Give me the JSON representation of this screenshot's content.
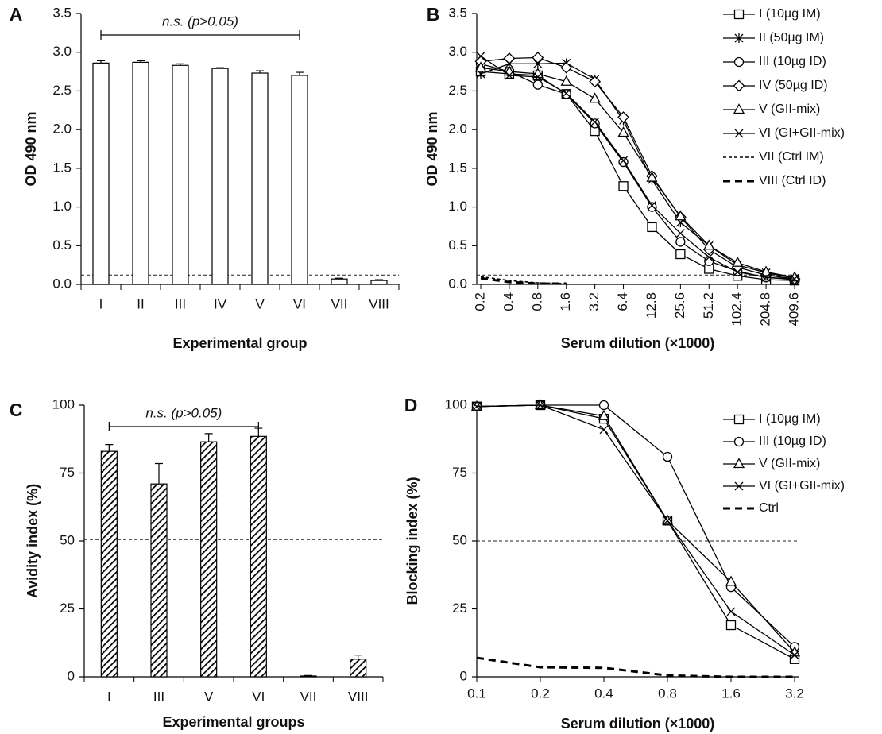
{
  "chart_data": [
    {
      "type": "bar",
      "panel": "A",
      "x_label": "Experimental group",
      "y_label": "OD 490 nm",
      "categories": [
        "I",
        "II",
        "III",
        "IV",
        "V",
        "VI",
        "VII",
        "VIII"
      ],
      "values": [
        2.86,
        2.87,
        2.83,
        2.79,
        2.73,
        2.7,
        0.07,
        0.05
      ],
      "errors": [
        0.03,
        0.02,
        0.02,
        0.01,
        0.03,
        0.04,
        0.01,
        0.01
      ],
      "color": "#ffffff",
      "edge_color": "#000000",
      "hatch": false,
      "reference_line": 0.12,
      "annotation": {
        "text": "n.s. (p>0.05)",
        "from": "I",
        "to": "VI"
      },
      "ylim": [
        0,
        3.5
      ],
      "yticks": [
        {
          "value": 0,
          "label": "0.0"
        },
        0.5,
        {
          "value": 1,
          "label": "1.0"
        },
        1.5,
        {
          "value": 2,
          "label": "2.0"
        },
        2.5,
        {
          "value": 3,
          "label": "3.0"
        },
        3.5
      ]
    },
    {
      "type": "line",
      "panel": "B",
      "x_label": "Serum dilution (×1000)",
      "y_label": "OD 490 nm",
      "categories": [
        "0.2",
        "0.4",
        "0.8",
        "1.6",
        "3.2",
        "6.4",
        "12.8",
        "25.6",
        "51.2",
        "102.4",
        "204.8",
        "409.6"
      ],
      "series": [
        {
          "name": "I (10µg IM)",
          "color": "#000000",
          "marker": "square",
          "line_style": "solid",
          "values": [
            2.75,
            2.72,
            2.7,
            2.46,
            1.98,
            1.27,
            0.74,
            0.39,
            0.2,
            0.11,
            0.06,
            0.05
          ]
        },
        {
          "name": "II (50µg IM)",
          "color": "#000000",
          "marker": "asterisk",
          "line_style": "solid",
          "values": [
            2.72,
            2.85,
            2.85,
            2.86,
            2.65,
            2.12,
            1.35,
            0.8,
            0.5,
            0.25,
            0.15,
            0.08
          ]
        },
        {
          "name": "III (10µg ID)",
          "color": "#000000",
          "marker": "circle",
          "line_style": "solid",
          "values": [
            2.85,
            2.75,
            2.58,
            2.46,
            2.08,
            1.58,
            1.0,
            0.55,
            0.3,
            0.17,
            0.09,
            0.06
          ]
        },
        {
          "name": "IV (50µg ID)",
          "color": "#000000",
          "marker": "diamond",
          "line_style": "solid",
          "values": [
            2.88,
            2.92,
            2.93,
            2.8,
            2.62,
            2.16,
            1.4,
            0.87,
            0.45,
            0.22,
            0.12,
            0.07
          ]
        },
        {
          "name": "V (GII-mix)",
          "color": "#000000",
          "marker": "triangle",
          "line_style": "solid",
          "values": [
            2.8,
            2.75,
            2.72,
            2.62,
            2.4,
            1.96,
            1.38,
            0.88,
            0.5,
            0.28,
            0.16,
            0.09
          ]
        },
        {
          "name": "VI (GI+GII-mix)",
          "color": "#000000",
          "marker": "x",
          "line_style": "solid",
          "values": [
            2.95,
            2.7,
            2.68,
            2.47,
            2.1,
            1.6,
            1.02,
            0.66,
            0.35,
            0.16,
            0.09,
            0.07
          ]
        },
        {
          "name": "VII (Ctrl IM)",
          "color": "#000000",
          "marker": "none",
          "line_style": "dashed",
          "values": [
            0.1,
            0.05,
            0.02,
            0.01,
            null,
            null,
            null,
            null,
            null,
            null,
            null,
            null
          ]
        },
        {
          "name": "VIII (Ctrl ID)",
          "color": "#000000",
          "marker": "none",
          "line_style": "bold-dashed",
          "values": [
            0.08,
            0.03,
            0.01,
            0.01,
            null,
            null,
            null,
            null,
            null,
            null,
            null,
            null
          ]
        }
      ],
      "reference_line": 0.12,
      "legend": "upper right",
      "ylim": [
        0,
        3.5
      ],
      "yticks": [
        {
          "value": 0,
          "label": "0.0"
        },
        0.5,
        {
          "value": 1,
          "label": "1.0"
        },
        1.5,
        {
          "value": 2,
          "label": "2.0"
        },
        2.5,
        {
          "value": 3,
          "label": "3.0"
        },
        3.5
      ]
    },
    {
      "type": "bar",
      "panel": "C",
      "x_label": "Experimental groups",
      "y_label": "Avidity index (%)",
      "categories": [
        "I",
        "III",
        "V",
        "VI",
        "VII",
        "VIII"
      ],
      "values": [
        83,
        71,
        86.5,
        88.5,
        0.3,
        6.5
      ],
      "errors": [
        2.5,
        7.5,
        3,
        3,
        0.2,
        1.5
      ],
      "color": "#000000",
      "edge_color": "#000000",
      "hatch": true,
      "reference_line": 50.5,
      "annotation": {
        "text": "n.s. (p>0.05)",
        "from": "I",
        "to": "VI"
      },
      "ylim": [
        0,
        100
      ],
      "yticks": [
        0,
        25,
        50,
        75,
        100
      ]
    },
    {
      "type": "line",
      "panel": "D",
      "x_label": "Serum dilution (×1000)",
      "y_label": "Blocking index (%)",
      "categories": [
        "0.1",
        "0.2",
        "0.4",
        "0.8",
        "1.6",
        "3.2"
      ],
      "series": [
        {
          "name": "I (10µg IM)",
          "color": "#000000",
          "marker": "square",
          "line_style": "solid",
          "values": [
            99.5,
            100,
            95,
            57.5,
            19,
            6.5
          ]
        },
        {
          "name": "III (10µg ID)",
          "color": "#000000",
          "marker": "circle",
          "line_style": "solid",
          "values": [
            99.5,
            100,
            100,
            81,
            33,
            11
          ]
        },
        {
          "name": "V (GII-mix)",
          "color": "#000000",
          "marker": "triangle",
          "line_style": "solid",
          "values": [
            99.5,
            100,
            96,
            57.5,
            35,
            9
          ]
        },
        {
          "name": "VI (GI+GII-mix)",
          "color": "#000000",
          "marker": "x",
          "line_style": "solid",
          "values": [
            99.5,
            100,
            91,
            57.5,
            24,
            8
          ]
        },
        {
          "name": "Ctrl",
          "color": "#000000",
          "marker": "none",
          "line_style": "bold-dashed",
          "values": [
            7,
            3.5,
            3.3,
            0.5,
            0,
            0
          ]
        }
      ],
      "reference_line": 50,
      "legend": "upper right",
      "ylim": [
        0,
        100
      ],
      "yticks": [
        0,
        25,
        50,
        75,
        100
      ]
    }
  ]
}
